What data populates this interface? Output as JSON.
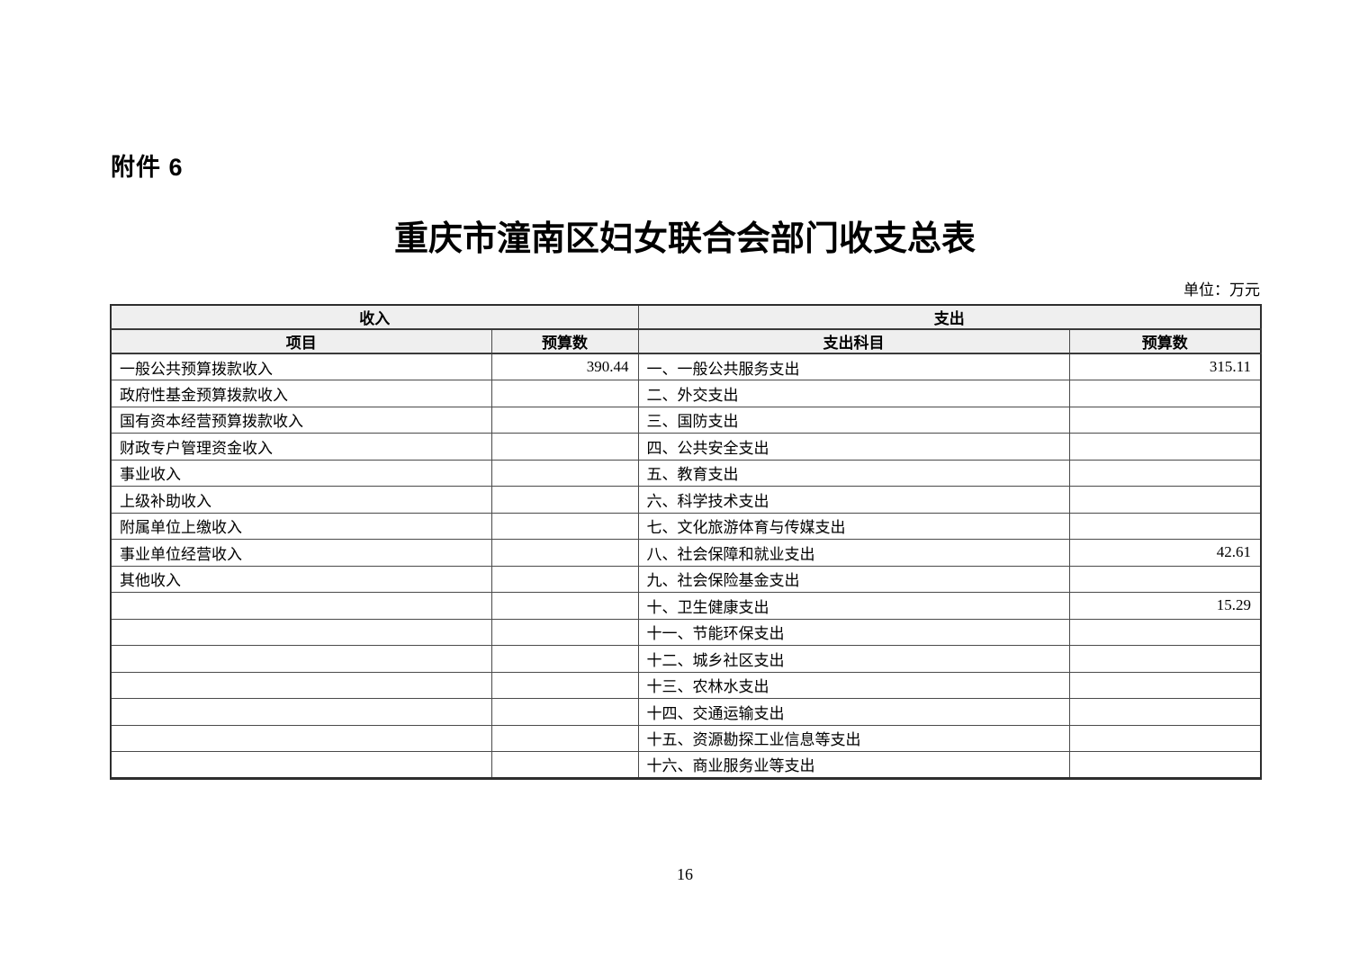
{
  "page": {
    "attachment_label": "附件 6",
    "title": "重庆市潼南区妇女联合会部门收支总表",
    "unit_note": "单位：万元",
    "page_number": "16"
  },
  "colors": {
    "header_background": "#efefef",
    "border": "#4a4a4a",
    "text": "#000000"
  },
  "table": {
    "revenue_header": "收入",
    "expenditure_header": "支出",
    "columns": {
      "revenue_item": "项目",
      "revenue_budget": "预算数",
      "expenditure_item": "支出科目",
      "expenditure_budget": "预算数"
    },
    "rows": [
      {
        "rev_item": "一般公共预算拨款收入",
        "rev_budget": "390.44",
        "exp_item": "一、一般公共服务支出",
        "exp_budget": "315.11"
      },
      {
        "rev_item": "政府性基金预算拨款收入",
        "rev_budget": "",
        "exp_item": "二、外交支出",
        "exp_budget": ""
      },
      {
        "rev_item": "国有资本经营预算拨款收入",
        "rev_budget": "",
        "exp_item": "三、国防支出",
        "exp_budget": ""
      },
      {
        "rev_item": "财政专户管理资金收入",
        "rev_budget": "",
        "exp_item": "四、公共安全支出",
        "exp_budget": ""
      },
      {
        "rev_item": "事业收入",
        "rev_budget": "",
        "exp_item": "五、教育支出",
        "exp_budget": ""
      },
      {
        "rev_item": "上级补助收入",
        "rev_budget": "",
        "exp_item": "六、科学技术支出",
        "exp_budget": ""
      },
      {
        "rev_item": "附属单位上缴收入",
        "rev_budget": "",
        "exp_item": "七、文化旅游体育与传媒支出",
        "exp_budget": ""
      },
      {
        "rev_item": "事业单位经营收入",
        "rev_budget": "",
        "exp_item": "八、社会保障和就业支出",
        "exp_budget": "42.61"
      },
      {
        "rev_item": "其他收入",
        "rev_budget": "",
        "exp_item": "九、社会保险基金支出",
        "exp_budget": ""
      },
      {
        "rev_item": "",
        "rev_budget": "",
        "exp_item": "十、卫生健康支出",
        "exp_budget": "15.29"
      },
      {
        "rev_item": "",
        "rev_budget": "",
        "exp_item": "十一、节能环保支出",
        "exp_budget": ""
      },
      {
        "rev_item": "",
        "rev_budget": "",
        "exp_item": "十二、城乡社区支出",
        "exp_budget": ""
      },
      {
        "rev_item": "",
        "rev_budget": "",
        "exp_item": "十三、农林水支出",
        "exp_budget": ""
      },
      {
        "rev_item": "",
        "rev_budget": "",
        "exp_item": "十四、交通运输支出",
        "exp_budget": ""
      },
      {
        "rev_item": "",
        "rev_budget": "",
        "exp_item": "十五、资源勘探工业信息等支出",
        "exp_budget": ""
      },
      {
        "rev_item": "",
        "rev_budget": "",
        "exp_item": "十六、商业服务业等支出",
        "exp_budget": ""
      }
    ]
  }
}
